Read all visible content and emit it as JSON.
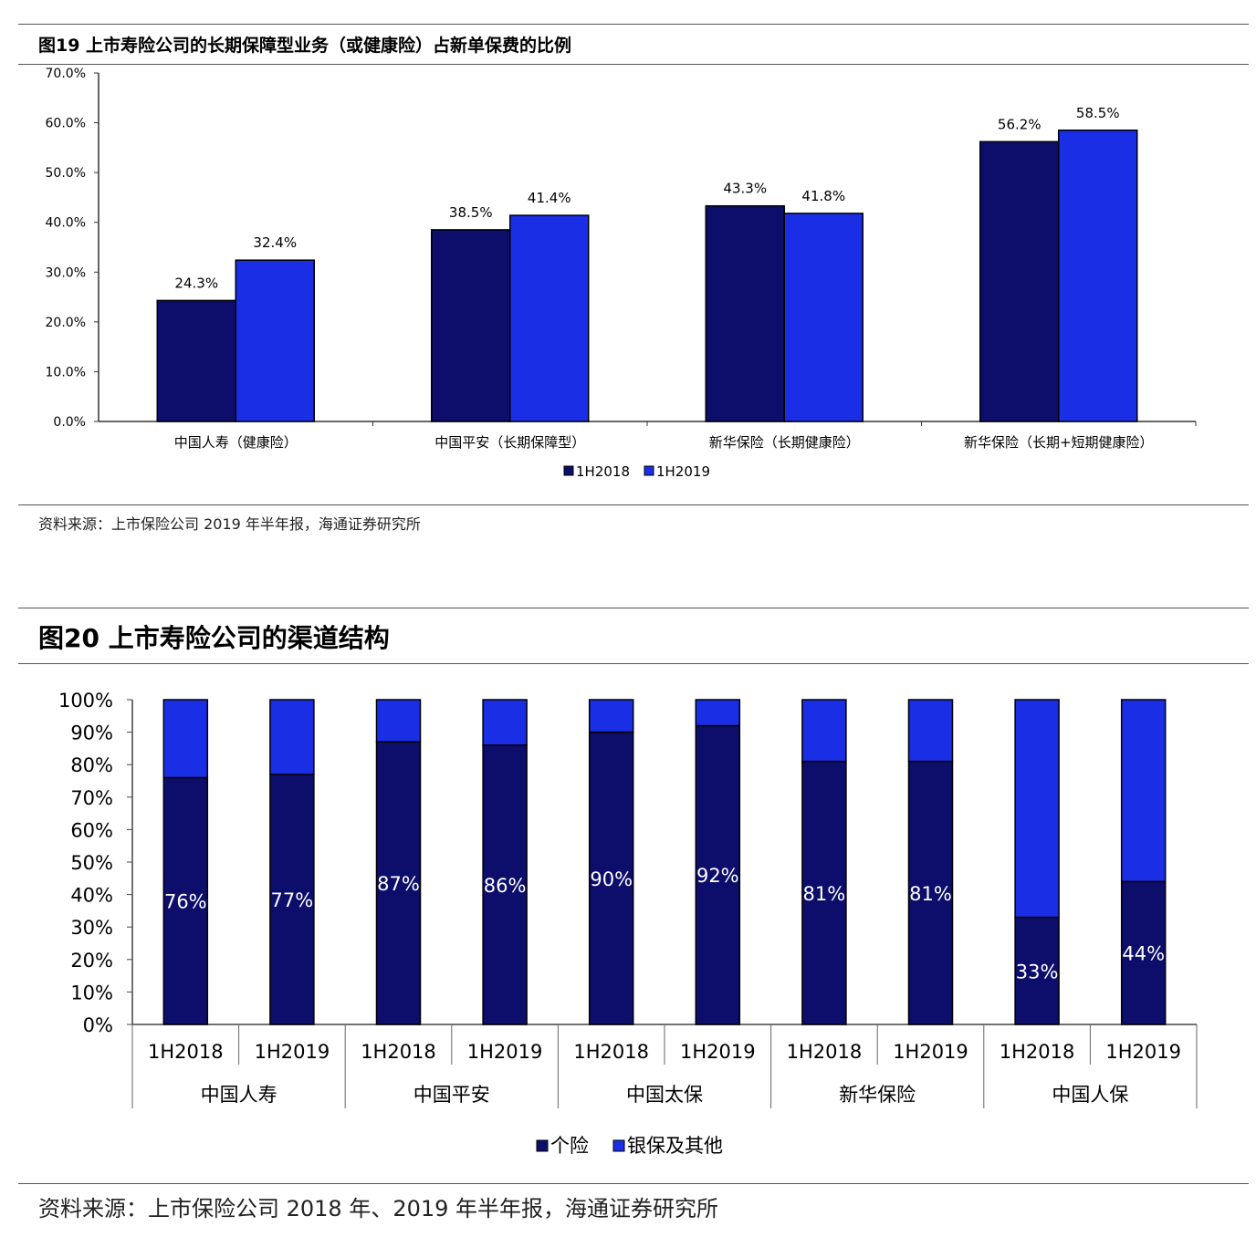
{
  "figure19": {
    "title": "图19 上市寿险公司的长期保障型业务（或健康险）占新单保费的比例",
    "source": "资料来源：上市保险公司 2019 年半年报，海通证券研究所"
  },
  "figure20": {
    "title": "图20 上市寿险公司的渠道结构",
    "source": "资料来源：上市保险公司 2018 年、2019 年半年报，海通证券研究所"
  },
  "chart_data": [
    {
      "type": "bar",
      "categories": [
        "中国人寿（健康险）",
        "中国平安（长期保障型）",
        "新华保险（长期健康险）",
        "新华保险（长期+短期健康险）"
      ],
      "series": [
        {
          "name": "1H2018",
          "values": [
            24.3,
            38.5,
            43.3,
            56.2
          ],
          "labels": [
            "24.3%",
            "38.5%",
            "43.3%",
            "56.2%"
          ]
        },
        {
          "name": "1H2019",
          "values": [
            32.4,
            41.4,
            41.8,
            58.5
          ],
          "labels": [
            "32.4%",
            "41.4%",
            "41.8%",
            "58.5%"
          ]
        }
      ],
      "yticks": [
        "0.0%",
        "10.0%",
        "20.0%",
        "30.0%",
        "40.0%",
        "50.0%",
        "60.0%",
        "70.0%"
      ],
      "ylim": [
        0,
        70
      ],
      "legend_position": "bottom",
      "colors": [
        "#0d0d6b",
        "#1a2ee6"
      ]
    },
    {
      "type": "bar",
      "stacked": true,
      "groups": [
        "中国人寿",
        "中国平安",
        "中国太保",
        "新华保险",
        "中国人保"
      ],
      "periods": [
        "1H2018",
        "1H2019"
      ],
      "series": [
        {
          "name": "个险",
          "values": [
            76,
            77,
            87,
            86,
            90,
            92,
            81,
            81,
            33,
            44
          ],
          "labels": [
            "76%",
            "77%",
            "87%",
            "86%",
            "90%",
            "92%",
            "81%",
            "81%",
            "33%",
            "44%"
          ]
        },
        {
          "name": "银保及其他",
          "values": [
            24,
            23,
            13,
            14,
            10,
            8,
            19,
            19,
            67,
            56
          ]
        }
      ],
      "yticks": [
        "0%",
        "10%",
        "20%",
        "30%",
        "40%",
        "50%",
        "60%",
        "70%",
        "80%",
        "90%",
        "100%"
      ],
      "ylim": [
        0,
        100
      ],
      "legend_position": "bottom",
      "colors": [
        "#0d0d6b",
        "#1a2ee6"
      ]
    }
  ]
}
